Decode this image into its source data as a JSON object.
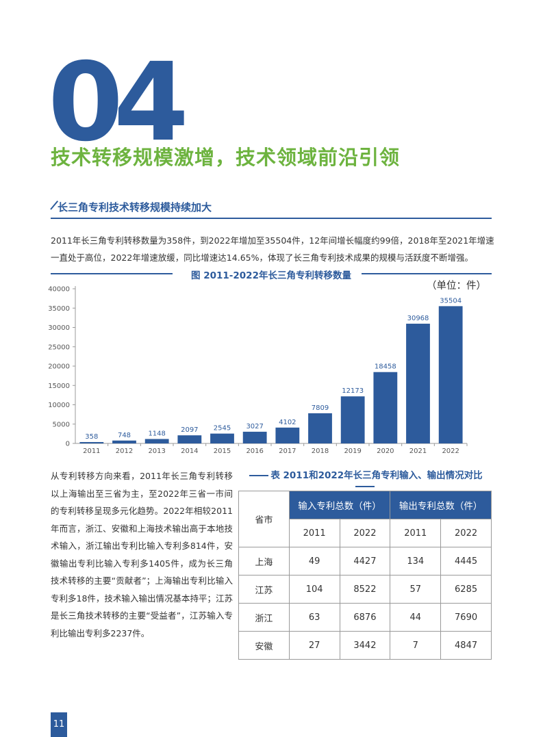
{
  "section": {
    "number": "04",
    "title": "技术转移规模激增，技术领域前沿引领"
  },
  "subsection": {
    "title": "长三角专利技术转移规模持续加大",
    "paragraph": "2011年长三角专利转移数量为358件，到2022年增加至35504件，12年间增长幅度约99倍，2018年至2021年增速一直处于高位，2022年增速放缓，同比增速达14.65%，体现了长三角专利技术成果的规模与活跃度不断增强。"
  },
  "chart_data": {
    "type": "bar",
    "title": "图 2011-2022年长三角专利转移数量",
    "unit": "（单位：件）",
    "categories": [
      "2011",
      "2012",
      "2013",
      "2014",
      "2015",
      "2016",
      "2017",
      "2018",
      "2019",
      "2020",
      "2021",
      "2022"
    ],
    "values": [
      358,
      748,
      1148,
      2097,
      2545,
      3027,
      4102,
      7809,
      12173,
      18458,
      30968,
      35504
    ],
    "yticks": [
      0,
      5000,
      10000,
      15000,
      20000,
      25000,
      30000,
      35000,
      40000
    ],
    "ylim": [
      0,
      40000
    ],
    "xlabel": "",
    "ylabel": "",
    "color": "#2d5b9c"
  },
  "left_paragraph": "从专利转移方向来看，2011年长三角专利转移以上海输出至三省为主，至2022年三省一市间的专利转移呈现多元化趋势。2022年相较2011年而言，浙江、安徽和上海技术输出高于本地技术输入，浙江输出专利比输入专利多814件，安徽输出专利比输入专利多1405件，成为长三角技术转移的主要“贡献者”；上海输出专利比输入专利多18件，技术输入输出情况基本持平；江苏是长三角技术转移的主要“受益者”，江苏输入专利比输出专利多2237件。",
  "table": {
    "title": "表 2011和2022年长三角专利输入、输出情况对比",
    "col_province": "省市",
    "col_input": "输入专利总数（件）",
    "col_output": "输出专利总数（件）",
    "years": [
      "2011",
      "2022",
      "2011",
      "2022"
    ],
    "rows": [
      {
        "name": "上海",
        "in2011": "49",
        "in2022": "4427",
        "out2011": "134",
        "out2022": "4445"
      },
      {
        "name": "江苏",
        "in2011": "104",
        "in2022": "8522",
        "out2011": "57",
        "out2022": "6285"
      },
      {
        "name": "浙江",
        "in2011": "63",
        "in2022": "6876",
        "out2011": "44",
        "out2022": "7690"
      },
      {
        "name": "安徽",
        "in2011": "27",
        "in2022": "3442",
        "out2011": "7",
        "out2022": "4847"
      }
    ]
  },
  "page_number": "11"
}
